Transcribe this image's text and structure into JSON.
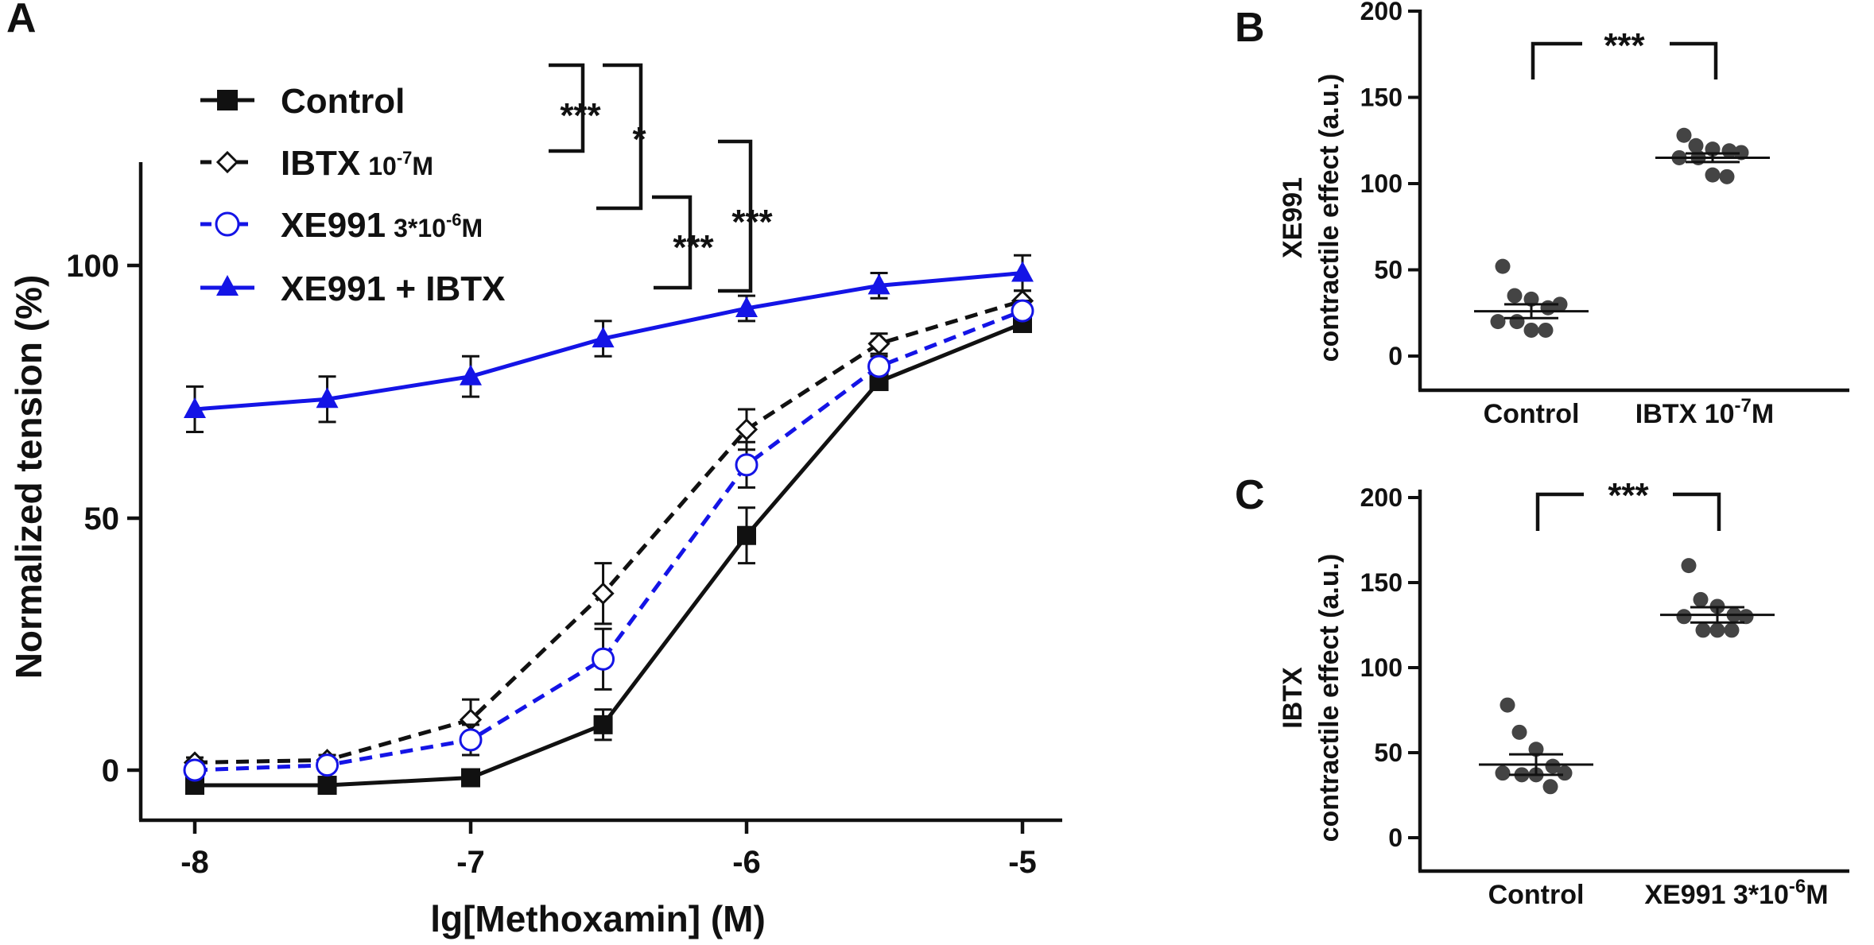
{
  "panels": {
    "A": {
      "letter": "A",
      "xlabel": "lg[Methoxamin] (M)",
      "ylabel": "Normalized tension (%)",
      "xlim": [
        -8.18,
        -4.8
      ],
      "ylim": [
        -10,
        120
      ],
      "xticks": [
        -8,
        -7,
        -6,
        -5
      ],
      "xtick_labels": [
        "-8",
        "-7",
        "-6",
        "-5"
      ],
      "yticks": [
        0,
        50,
        100
      ],
      "ytick_labels": [
        "0",
        "50",
        "100"
      ]
    },
    "B": {
      "letter": "B",
      "ylabel_line1": "XE991",
      "ylabel_line2": "contractile effect (a.u.)",
      "yticks": [
        0,
        50,
        100,
        150,
        200
      ],
      "ytick_labels": [
        "0",
        "50",
        "100",
        "150",
        "200"
      ],
      "categories": [
        "Control",
        "IBTX 10"
      ],
      "category_sup": "-7",
      "category_suffix": "M",
      "significance": "***"
    },
    "C": {
      "letter": "C",
      "ylabel_line1": "IBTX",
      "ylabel_line2": "contractile effect (a.u.)",
      "yticks": [
        0,
        50,
        100,
        150,
        200
      ],
      "ytick_labels": [
        "0",
        "50",
        "100",
        "150",
        "200"
      ],
      "categories": [
        "Control",
        "XE991 3*10"
      ],
      "category_sup": "-6",
      "category_suffix": "M",
      "significance": "***"
    }
  },
  "legend": [
    {
      "name": "Control",
      "sub": ""
    },
    {
      "name": "IBTX",
      "sub": "10",
      "sup": "-7",
      "unit": "M"
    },
    {
      "name": "XE991",
      "sub": "3*10",
      "sup": "-6",
      "unit": "M"
    },
    {
      "name": "XE991 + IBTX",
      "sub": ""
    }
  ],
  "significance_labels": [
    "***",
    "*",
    "***",
    "***"
  ],
  "colors": {
    "black": "#111111",
    "blue": "#1414e6",
    "dot": "#444444"
  },
  "chart_data": [
    {
      "type": "line",
      "title": "",
      "xlabel": "lg[Methoxamin] (M)",
      "ylabel": "Normalized tension (%)",
      "xlim": [
        -8.18,
        -4.8
      ],
      "ylim": [
        -10,
        120
      ],
      "x": [
        -8,
        -7.52,
        -7,
        -6.52,
        -6,
        -5.52,
        -5
      ],
      "series": [
        {
          "name": "Control",
          "marker": "square",
          "dash": "solid",
          "color": "#111111",
          "values": [
            -3,
            -3,
            -1.5,
            9,
            46.5,
            77,
            88.5
          ],
          "errors": [
            1,
            1,
            1,
            3,
            5.5,
            1,
            1
          ]
        },
        {
          "name": "IBTX 10-7M",
          "marker": "diamond-open",
          "dash": "dashed",
          "color": "#111111",
          "values": [
            1.5,
            2,
            10,
            35,
            67.5,
            84.5,
            93
          ],
          "errors": [
            1,
            1,
            4,
            6,
            4,
            2,
            2
          ]
        },
        {
          "name": "XE991 3*10-6M",
          "marker": "circle-open",
          "dash": "dashed",
          "color": "#1414e6",
          "values": [
            0,
            1,
            6,
            22,
            60.5,
            80,
            91
          ],
          "errors": [
            1,
            1,
            3,
            6,
            4.5,
            2,
            2
          ]
        },
        {
          "name": "XE991 + IBTX",
          "marker": "triangle",
          "dash": "solid",
          "color": "#1414e6",
          "values": [
            71.5,
            73.5,
            78,
            85.5,
            91.5,
            96,
            98.5
          ],
          "errors": [
            4.5,
            4.5,
            4,
            3.5,
            2.5,
            2.5,
            3.5
          ]
        }
      ]
    },
    {
      "type": "scatter",
      "panel": "B",
      "ylabel": "XE991 contractile effect (a.u.)",
      "ylim": [
        -20,
        200
      ],
      "categories": [
        "Control",
        "IBTX 10-7M"
      ],
      "groups": [
        {
          "name": "Control",
          "mean": 26,
          "sem": 4,
          "values": [
            52,
            35,
            33,
            28,
            30,
            20,
            20,
            15,
            15
          ]
        },
        {
          "name": "IBTX 10-7M",
          "mean": 115,
          "sem": 2.5,
          "values": [
            128,
            122,
            120,
            119,
            118,
            115,
            115,
            105,
            104
          ]
        }
      ]
    },
    {
      "type": "scatter",
      "panel": "C",
      "ylabel": "IBTX contractile effect (a.u.)",
      "ylim": [
        -20,
        200
      ],
      "categories": [
        "Control",
        "XE991 3*10-6M"
      ],
      "groups": [
        {
          "name": "Control",
          "mean": 43,
          "sem": 6,
          "values": [
            78,
            62,
            52,
            42,
            38,
            38,
            37,
            37,
            30
          ]
        },
        {
          "name": "XE991 3*10-6M",
          "mean": 131,
          "sem": 4.5,
          "values": [
            160,
            140,
            136,
            131,
            130,
            130,
            122,
            122,
            122
          ]
        }
      ]
    }
  ]
}
